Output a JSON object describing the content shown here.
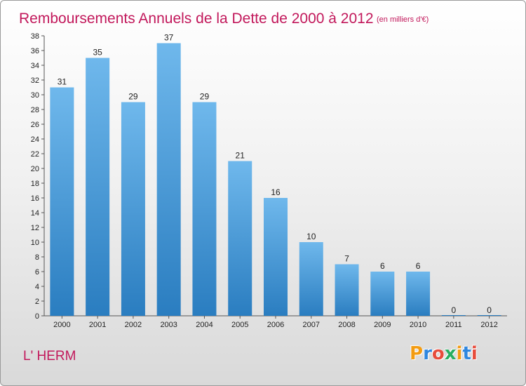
{
  "colors": {
    "title": "#c2185b",
    "bar_top": "#6fb8ec",
    "bar_bottom": "#2a7dc0",
    "axis": "#555555"
  },
  "footer": {
    "commune": "L' HERM",
    "logo_text": "Proxiti",
    "logo_colors": [
      "#f39c12",
      "#2e86de",
      "#e74c3c",
      "#27ae60",
      "#f39c12",
      "#2e86de",
      "#e74c3c"
    ]
  },
  "chart_data": {
    "type": "bar",
    "title": "Remboursements Annuels de la Dette de 2000 à 2012",
    "subtitle": "(en milliers d'€)",
    "categories": [
      "2000",
      "2001",
      "2002",
      "2003",
      "2004",
      "2005",
      "2006",
      "2007",
      "2008",
      "2009",
      "2010",
      "2011",
      "2012"
    ],
    "values": [
      31,
      35,
      29,
      37,
      29,
      21,
      16,
      10,
      7,
      6,
      6,
      0,
      0
    ],
    "ylim": [
      0,
      38
    ],
    "yticks": [
      0,
      2,
      4,
      6,
      8,
      10,
      12,
      14,
      16,
      18,
      20,
      22,
      24,
      26,
      28,
      30,
      32,
      34,
      36,
      38
    ],
    "grid": false,
    "xlabel": "",
    "ylabel": ""
  }
}
